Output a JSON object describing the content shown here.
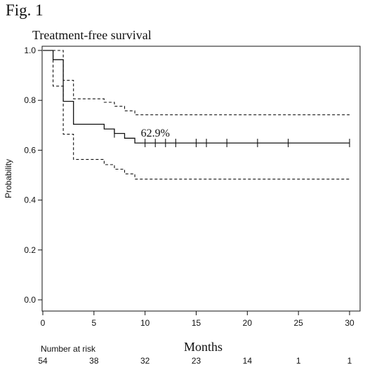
{
  "figure_label": "Fig. 1",
  "chart_data": {
    "type": "line",
    "title": "Treatment-free survival",
    "xlabel": "Months",
    "ylabel": "Probability",
    "xlim": [
      0,
      30
    ],
    "ylim": [
      0,
      1.0
    ],
    "x_ticks": [
      0,
      5,
      10,
      15,
      20,
      25,
      30
    ],
    "y_ticks": [
      0.0,
      0.2,
      0.4,
      0.6,
      0.8,
      1.0
    ],
    "grid": false,
    "annotation": {
      "text": "62.9%",
      "x": 11,
      "y": 0.655
    },
    "series": [
      {
        "style": "solid",
        "steps": [
          [
            0,
            1.0
          ],
          [
            1,
            1.0
          ],
          [
            1,
            0.963
          ],
          [
            2,
            0.963
          ],
          [
            2,
            0.796
          ],
          [
            3,
            0.796
          ],
          [
            3,
            0.704
          ],
          [
            6,
            0.704
          ],
          [
            6,
            0.685
          ],
          [
            7,
            0.685
          ],
          [
            7,
            0.667
          ],
          [
            8,
            0.667
          ],
          [
            8,
            0.648
          ],
          [
            9,
            0.648
          ],
          [
            9,
            0.629
          ],
          [
            30,
            0.629
          ]
        ],
        "censor_times": [
          7,
          10,
          11,
          12,
          13,
          15,
          16,
          18,
          21,
          24,
          30
        ]
      },
      {
        "style": "dashed",
        "steps": [
          [
            0,
            1.0
          ],
          [
            2,
            1.0
          ],
          [
            2,
            0.988
          ],
          [
            2,
            0.988
          ],
          [
            2,
            0.88
          ],
          [
            3,
            0.88
          ],
          [
            3,
            0.806
          ],
          [
            6,
            0.806
          ],
          [
            6,
            0.792
          ],
          [
            7,
            0.792
          ],
          [
            7,
            0.776
          ],
          [
            8,
            0.776
          ],
          [
            8,
            0.758
          ],
          [
            9,
            0.758
          ],
          [
            9,
            0.742
          ],
          [
            30,
            0.742
          ]
        ]
      },
      {
        "style": "dashed",
        "steps": [
          [
            0,
            1.0
          ],
          [
            1,
            1.0
          ],
          [
            1,
            0.857
          ],
          [
            2,
            0.857
          ],
          [
            2,
            0.664
          ],
          [
            3,
            0.664
          ],
          [
            3,
            0.563
          ],
          [
            6,
            0.563
          ],
          [
            6,
            0.542
          ],
          [
            7,
            0.542
          ],
          [
            7,
            0.524
          ],
          [
            8,
            0.524
          ],
          [
            8,
            0.505
          ],
          [
            9,
            0.505
          ],
          [
            9,
            0.484
          ],
          [
            30,
            0.484
          ]
        ]
      }
    ],
    "risk_table": {
      "label": "Number at risk",
      "times": [
        0,
        5,
        10,
        15,
        20,
        25,
        30
      ],
      "counts": [
        "54",
        "38",
        "32",
        "23",
        "14",
        "1",
        "1"
      ]
    }
  }
}
